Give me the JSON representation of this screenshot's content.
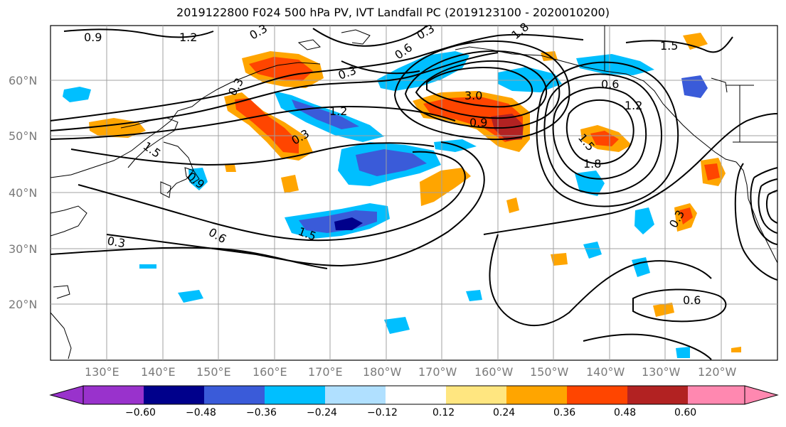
{
  "title": "2019122800 F024 500 hPa PV, IVT Landfall PC (2019123100 - 2020010200)",
  "lat_labels": [
    "60°N",
    "50°N",
    "40°N",
    "30°N",
    "20°N"
  ],
  "lon_labels": [
    "130°E",
    "140°E",
    "150°E",
    "160°E",
    "170°E",
    "180°W",
    "170°W",
    "160°W",
    "150°W",
    "140°W",
    "130°W",
    "120°W"
  ],
  "colorbar": {
    "ticks": [
      "−0.60",
      "−0.48",
      "−0.36",
      "−0.24",
      "−0.12",
      "0.12",
      "0.24",
      "0.36",
      "0.48",
      "0.60"
    ],
    "colors": [
      "#9932cc",
      "#00008b",
      "#3a5bd9",
      "#00bfff",
      "#b0e0ff",
      "#ffffff",
      "#ffe680",
      "#ffa500",
      "#ff4500",
      "#b22222",
      "#ff88b0"
    ]
  },
  "contour_labels": [
    "0.9",
    "1.2",
    "0.3",
    "0.3",
    "1.8",
    "0.6",
    "1.5",
    "0.3",
    "0.6",
    "0.3",
    "1.2",
    "3.0",
    "0.9",
    "1.5",
    "1.8",
    "1.5",
    "0.3",
    "0.9",
    "0.6",
    "1.5",
    "0.3",
    "0.6",
    "0.3",
    "1.2"
  ],
  "colors": {
    "grid": "#a0a0a0",
    "contour": "#000000",
    "tick_label": "#7a7a7a"
  }
}
